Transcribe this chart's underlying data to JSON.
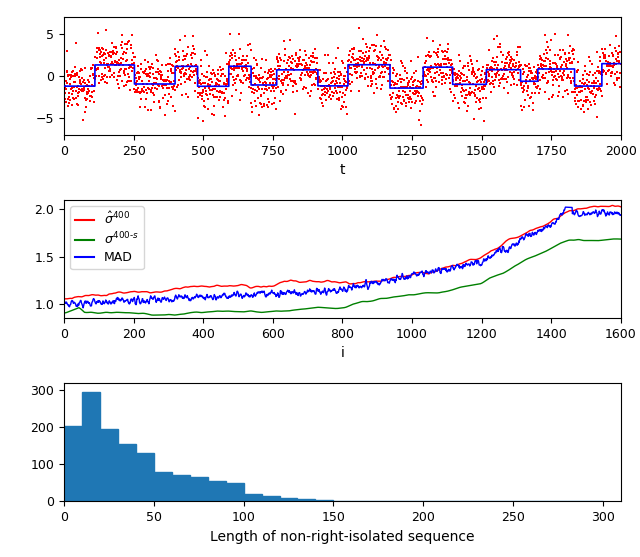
{
  "fig_width": 6.4,
  "fig_height": 5.57,
  "dpi": 100,
  "scatter_color": "#ff0000",
  "scatter_marker": "s",
  "scatter_size": 3,
  "line1_color": "#0000ff",
  "subplot1_xlabel": "t",
  "subplot1_ylim": [
    -7,
    7
  ],
  "subplot1_yticks": [
    -5,
    0,
    5
  ],
  "subplot1_xticks": [
    0,
    250,
    500,
    750,
    1000,
    1250,
    1500,
    1750,
    2000
  ],
  "subplot2_xlabel": "i",
  "subplot2_ylim": [
    0.85,
    2.1
  ],
  "subplot2_yticks": [
    1.0,
    1.5,
    2.0
  ],
  "subplot2_xticks": [
    0,
    200,
    400,
    600,
    800,
    1000,
    1200,
    1400,
    1600
  ],
  "legend2_colors": [
    "#ff0000",
    "#008000",
    "#0000ff"
  ],
  "subplot3_xlabel": "Length of non-right-isolated sequence",
  "subplot3_xlim": [
    0,
    310
  ],
  "subplot3_ylim": [
    0,
    320
  ],
  "subplot3_yticks": [
    0,
    100,
    200,
    300
  ],
  "subplot3_xticks": [
    0,
    50,
    100,
    150,
    200,
    250,
    300
  ],
  "hist_color": "#1f77b4",
  "hist_bins_heights": [
    205,
    295,
    195,
    155,
    130,
    80,
    70,
    65,
    55,
    50,
    20,
    15,
    10,
    5,
    3,
    2,
    1,
    0,
    0,
    0,
    0,
    0,
    0,
    0,
    0,
    0,
    0,
    0,
    0,
    0
  ]
}
